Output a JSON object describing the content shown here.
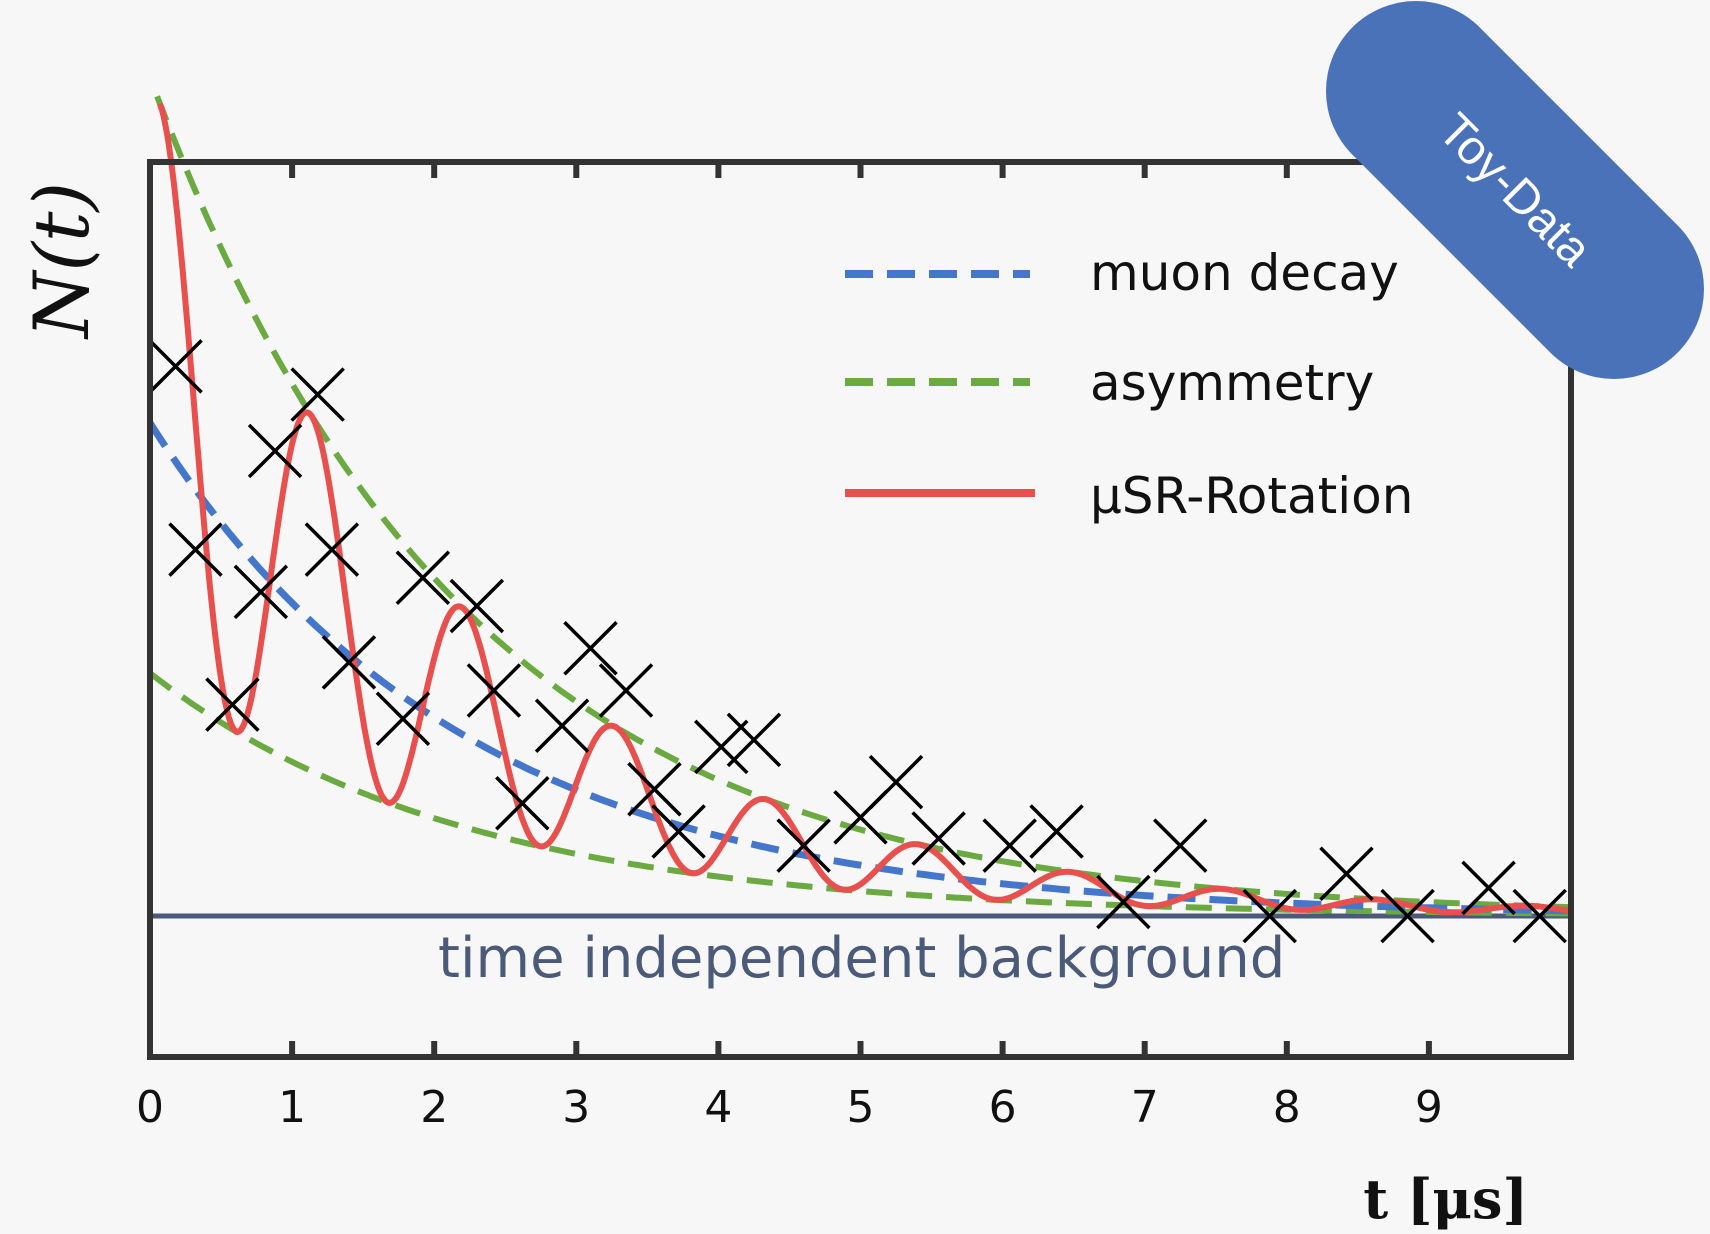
{
  "chart_data": {
    "type": "line",
    "xlabel": "t [μs]",
    "ylabel": "N(t)",
    "xlim": [
      0,
      10
    ],
    "ylim": [
      -1.0,
      5.35
    ],
    "x_ticks": [
      "0",
      "1",
      "2",
      "3",
      "4",
      "5",
      "6",
      "7",
      "8",
      "9"
    ],
    "background_label": "time independent background",
    "badge": "Toy-Data",
    "colors": {
      "muon_decay": "#4477cc",
      "asymmetry": "#6aaa40",
      "rotation": "#e8504e",
      "background": "#4a5a78",
      "badge": "#4a72b8",
      "frame": "#333333"
    },
    "series": [
      {
        "name": "muon decay",
        "kind": "dashed",
        "model": {
          "N0": 3.5,
          "tau": 2.2
        }
      },
      {
        "name": "asymmetry",
        "kind": "dashed",
        "model": {
          "N0": 3.5,
          "tau": 2.2,
          "A": 0.35
        }
      },
      {
        "name": "μSR-Rotation",
        "kind": "solid",
        "model": {
          "N0": 3.5,
          "tau": 2.2,
          "A": 0.35,
          "period": 1.07,
          "phase_shift": 0.07
        }
      }
    ],
    "background": {
      "value": 0
    },
    "data_points": [
      {
        "x": 0.18,
        "y": 3.9
      },
      {
        "x": 0.32,
        "y": 2.6
      },
      {
        "x": 0.58,
        "y": 1.5
      },
      {
        "x": 0.78,
        "y": 2.3
      },
      {
        "x": 0.88,
        "y": 3.3
      },
      {
        "x": 1.18,
        "y": 3.7
      },
      {
        "x": 1.28,
        "y": 2.6
      },
      {
        "x": 1.4,
        "y": 1.8
      },
      {
        "x": 1.78,
        "y": 1.4
      },
      {
        "x": 1.92,
        "y": 2.4
      },
      {
        "x": 2.3,
        "y": 2.2
      },
      {
        "x": 2.42,
        "y": 1.6
      },
      {
        "x": 2.62,
        "y": 0.8
      },
      {
        "x": 2.9,
        "y": 1.35
      },
      {
        "x": 3.1,
        "y": 1.9
      },
      {
        "x": 3.35,
        "y": 1.6
      },
      {
        "x": 3.55,
        "y": 0.9
      },
      {
        "x": 3.72,
        "y": 0.6
      },
      {
        "x": 4.02,
        "y": 1.2
      },
      {
        "x": 4.25,
        "y": 1.25
      },
      {
        "x": 4.6,
        "y": 0.5
      },
      {
        "x": 5.0,
        "y": 0.7
      },
      {
        "x": 5.25,
        "y": 0.95
      },
      {
        "x": 5.55,
        "y": 0.55
      },
      {
        "x": 6.05,
        "y": 0.5
      },
      {
        "x": 6.38,
        "y": 0.6
      },
      {
        "x": 6.85,
        "y": 0.1
      },
      {
        "x": 7.25,
        "y": 0.5
      },
      {
        "x": 7.88,
        "y": 0.0
      },
      {
        "x": 8.42,
        "y": 0.3
      },
      {
        "x": 8.85,
        "y": 0.0
      },
      {
        "x": 9.42,
        "y": 0.2
      },
      {
        "x": 9.78,
        "y": 0.0
      }
    ],
    "legend": {
      "position": "top-right",
      "items": [
        "muon decay",
        "asymmetry",
        "μSR-Rotation"
      ]
    },
    "grid": false
  }
}
